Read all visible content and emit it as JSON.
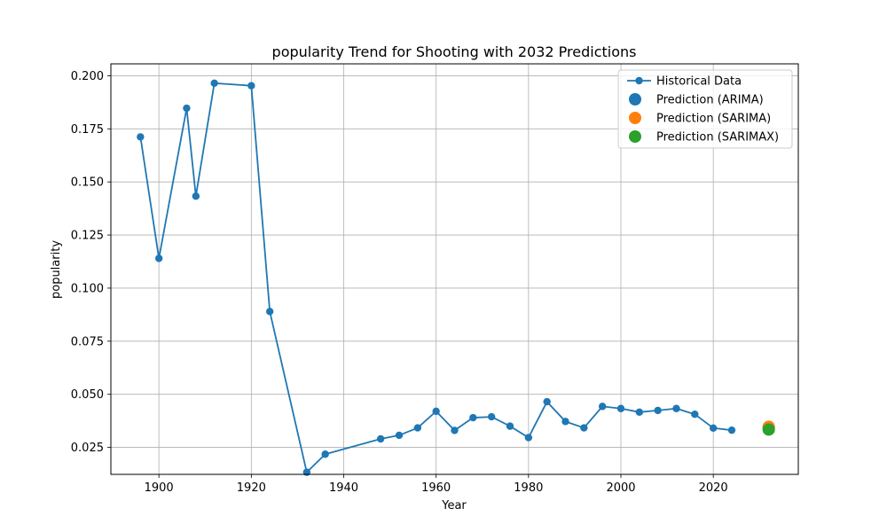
{
  "chart_data": {
    "type": "line",
    "title": "popularity Trend for Shooting with 2032 Predictions",
    "xlabel": "Year",
    "ylabel": "popularity",
    "xlim": [
      1889.6,
      2038.4
    ],
    "ylim": [
      0.0123,
      0.2056
    ],
    "x_ticks": [
      1900,
      1920,
      1940,
      1960,
      1980,
      2000,
      2020
    ],
    "y_ticks": [
      0.025,
      0.05,
      0.075,
      0.1,
      0.125,
      0.15,
      0.175,
      0.2
    ],
    "y_tick_labels": [
      "0.025",
      "0.050",
      "0.075",
      "0.100",
      "0.125",
      "0.150",
      "0.175",
      "0.200"
    ],
    "grid": true,
    "legend_position": "top-right",
    "series": [
      {
        "name": "Historical Data",
        "color": "#1f77b4",
        "style": "line-markers",
        "x": [
          1896,
          1900,
          1906,
          1908,
          1912,
          1920,
          1924,
          1932,
          1936,
          1948,
          1952,
          1956,
          1960,
          1964,
          1968,
          1972,
          1976,
          1980,
          1984,
          1988,
          1992,
          1996,
          2000,
          2004,
          2008,
          2012,
          2016,
          2020,
          2024
        ],
        "y": [
          0.1712,
          0.114,
          0.1847,
          0.1433,
          0.1965,
          0.1953,
          0.089,
          0.0133,
          0.0218,
          0.029,
          0.0307,
          0.0342,
          0.042,
          0.033,
          0.039,
          0.0394,
          0.035,
          0.0296,
          0.0465,
          0.0372,
          0.0342,
          0.0443,
          0.0433,
          0.0416,
          0.0424,
          0.0433,
          0.0406,
          0.0341,
          0.0331
        ]
      },
      {
        "name": "Prediction (ARIMA)",
        "color": "#1f77b4",
        "style": "point",
        "x": [
          2032
        ],
        "y": [
          0.0343
        ]
      },
      {
        "name": "Prediction (SARIMA)",
        "color": "#ff7f0e",
        "style": "point",
        "x": [
          2032
        ],
        "y": [
          0.0347
        ]
      },
      {
        "name": "Prediction (SARIMAX)",
        "color": "#2ca02c",
        "style": "point",
        "x": [
          2032
        ],
        "y": [
          0.0334
        ]
      }
    ]
  }
}
